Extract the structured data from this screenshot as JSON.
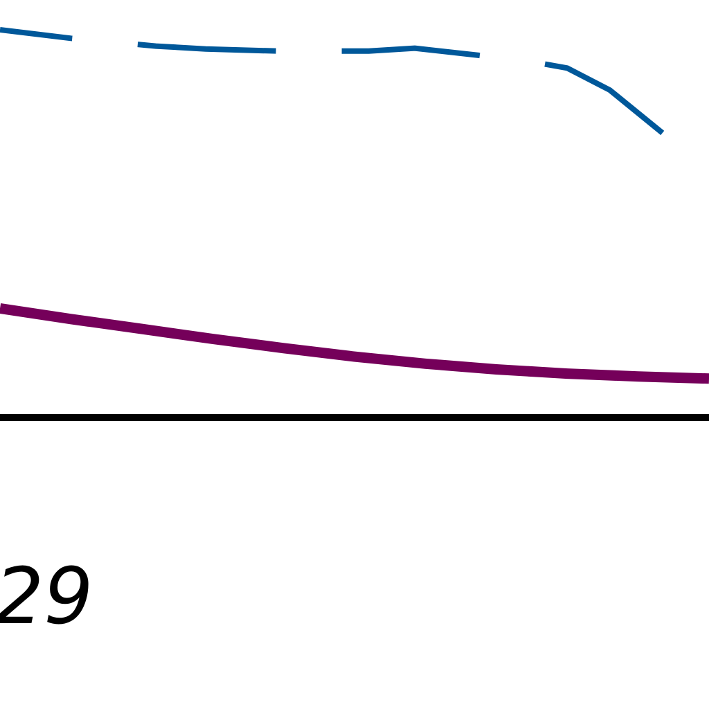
{
  "chart_data": {
    "type": "line",
    "title": "",
    "xlabel": "",
    "ylabel": "",
    "grid": false,
    "legend": "none",
    "x_tick_labels": [
      "29"
    ],
    "series": [
      {
        "color": "#00589a",
        "style": "dashed",
        "x": [
          0,
          0.1,
          0.22,
          0.29,
          0.39,
          0.52,
          0.585,
          0.675,
          0.75,
          0.8,
          0.86,
          0.935,
          1.0
        ],
        "y": [
          95.8,
          94.6,
          93.5,
          93.1,
          92.8,
          92.8,
          93.2,
          92.2,
          91.3,
          90.4,
          87.3,
          81.2,
          76.2
        ]
      },
      {
        "color": "#75005a",
        "style": "solid",
        "x": [
          0,
          0.1,
          0.2,
          0.3,
          0.4,
          0.5,
          0.6,
          0.7,
          0.8,
          0.9,
          1.0
        ],
        "y": [
          56.5,
          55.0,
          53.6,
          52.2,
          50.9,
          49.7,
          48.7,
          47.9,
          47.3,
          46.9,
          46.6
        ]
      }
    ],
    "xlim": [
      0,
      1
    ],
    "ylim": [
      0,
      100
    ]
  }
}
